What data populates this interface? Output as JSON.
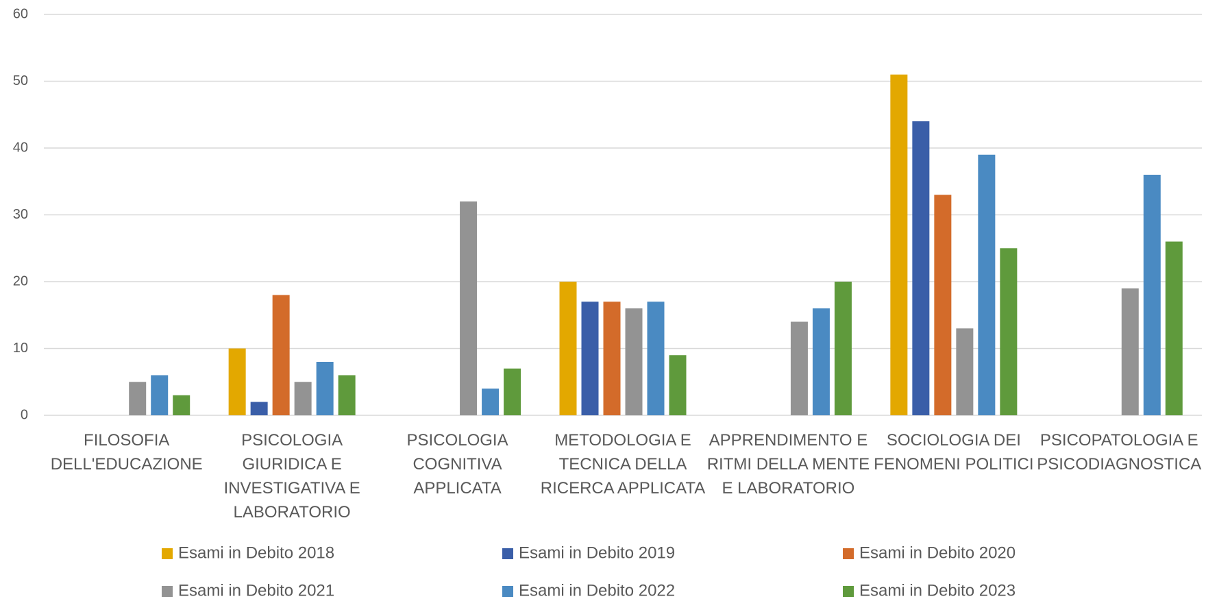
{
  "chart_data": {
    "type": "bar",
    "categories": [
      "FILOSOFIA DELL'EDUCAZIONE",
      "PSICOLOGIA GIURIDICA E INVESTIGATIVA E LABORATORIO",
      "PSICOLOGIA COGNITIVA APPLICATA",
      "METODOLOGIA E TECNICA DELLA RICERCA APPLICATA",
      "APPRENDIMENTO E RITMI DELLA MENTE E LABORATORIO",
      "SOCIOLOGIA DEI FENOMENI POLITICI",
      "PSICOPATOLOGIA E PSICODIAGNOSTICA"
    ],
    "series": [
      {
        "name": "Esami in Debito 2018",
        "color": "#e3a800",
        "values": [
          null,
          10,
          null,
          20,
          null,
          51,
          null
        ]
      },
      {
        "name": "Esami in Debito 2019",
        "color": "#3a5ea8",
        "values": [
          null,
          2,
          null,
          17,
          null,
          44,
          null
        ]
      },
      {
        "name": "Esami in Debito 2020",
        "color": "#d36b2a",
        "values": [
          null,
          18,
          null,
          17,
          null,
          33,
          null
        ]
      },
      {
        "name": "Esami in Debito 2021",
        "color": "#939393",
        "values": [
          5,
          5,
          32,
          16,
          14,
          13,
          19
        ]
      },
      {
        "name": "Esami in Debito 2022",
        "color": "#4a8ac2",
        "values": [
          6,
          8,
          4,
          17,
          16,
          39,
          36
        ]
      },
      {
        "name": "Esami in Debito 2023",
        "color": "#5f9a3c",
        "values": [
          3,
          6,
          7,
          9,
          20,
          25,
          26
        ]
      }
    ],
    "ylim": [
      0,
      60
    ],
    "yticks": [
      0,
      10,
      20,
      30,
      40,
      50,
      60
    ],
    "grid": true,
    "legend": "bottom"
  }
}
